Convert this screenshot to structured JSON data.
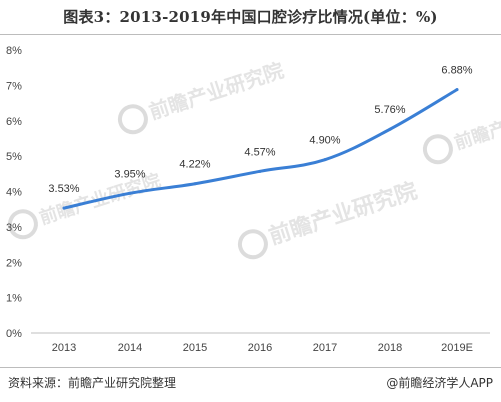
{
  "title": "图表3：2013-2019年中国口腔诊疗比情况(单位：%)",
  "source": "资料来源：前瞻产业研究院整理",
  "brand": "@前瞻经济学人APP",
  "watermark": "前瞻产业研究院",
  "colors": {
    "line": "#3a7fd5",
    "axis": "#bfbfbf",
    "text": "#333333"
  },
  "chart_data": {
    "type": "line",
    "title": "图表3：2013-2019年中国口腔诊疗比情况(单位：%)",
    "xlabel": "",
    "ylabel": "",
    "categories": [
      "2013",
      "2014",
      "2015",
      "2016",
      "2017",
      "2018",
      "2019E"
    ],
    "series": [
      {
        "values": [
          3.53,
          3.95,
          4.22,
          4.57,
          4.9,
          5.76,
          6.88
        ],
        "labels": [
          "3.53%",
          "3.95%",
          "4.22%",
          "4.57%",
          "4.90%",
          "5.76%",
          "6.88%"
        ]
      }
    ],
    "ylim": [
      0,
      8
    ],
    "yticks": [
      "0%",
      "1%",
      "2%",
      "3%",
      "4%",
      "5%",
      "6%",
      "7%",
      "8%"
    ],
    "grid": false,
    "legend": "none"
  }
}
